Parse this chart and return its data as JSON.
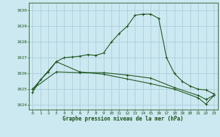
{
  "background_color": "#cce8f0",
  "grid_color": "#aaccdd",
  "line_color": "#1a5218",
  "xlabel": "Graphe pression niveau de la mer (hPa)",
  "xlim": [
    -0.5,
    23.5
  ],
  "ylim": [
    1023.7,
    1030.5
  ],
  "yticks": [
    1024,
    1025,
    1026,
    1027,
    1028,
    1029,
    1030
  ],
  "xticks": [
    0,
    1,
    2,
    3,
    4,
    5,
    6,
    7,
    8,
    9,
    10,
    11,
    12,
    13,
    14,
    15,
    16,
    17,
    18,
    19,
    20,
    21,
    22,
    23
  ],
  "series1_x": [
    0,
    1,
    2,
    3,
    4,
    5,
    6,
    7,
    8,
    9,
    10,
    11,
    12,
    13,
    14,
    15,
    16,
    17,
    18,
    19,
    20,
    21,
    22,
    23
  ],
  "series1_y": [
    1024.8,
    1025.6,
    1026.1,
    1026.75,
    1027.0,
    1027.05,
    1027.1,
    1027.2,
    1027.15,
    1027.3,
    1028.0,
    1028.55,
    1029.0,
    1029.7,
    1029.78,
    1029.78,
    1029.5,
    1027.0,
    1026.0,
    1025.5,
    1025.2,
    1025.0,
    1024.95,
    1024.7
  ],
  "series2_x": [
    0,
    3,
    6,
    9,
    12,
    15,
    18,
    21,
    22,
    23
  ],
  "series2_y": [
    1025.0,
    1026.1,
    1026.05,
    1026.05,
    1025.9,
    1025.7,
    1025.1,
    1024.6,
    1024.35,
    1024.6
  ],
  "series3_x": [
    0,
    3,
    6,
    9,
    12,
    15,
    18,
    21,
    22,
    23
  ],
  "series3_y": [
    1025.0,
    1026.75,
    1026.1,
    1025.95,
    1025.65,
    1025.35,
    1025.0,
    1024.45,
    1024.05,
    1024.6
  ]
}
